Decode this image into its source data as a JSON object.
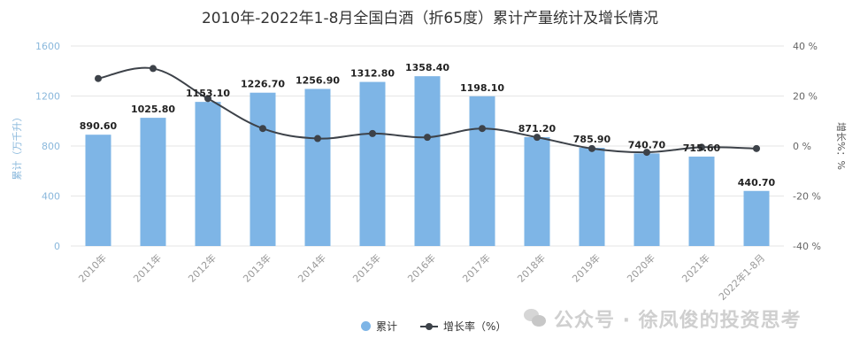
{
  "chart_data": {
    "type": "bar",
    "title": "2010年-2022年1-8月全国白酒（折65度）累计产量统计及增长情况",
    "categories": [
      "2010年",
      "2011年",
      "2012年",
      "2013年",
      "2014年",
      "2015年",
      "2016年",
      "2017年",
      "2018年",
      "2019年",
      "2020年",
      "2021年",
      "2022年1-8月"
    ],
    "ylabel": "累计（万千升）",
    "y2label": "增长%：%",
    "ylim": [
      0,
      1600
    ],
    "y2lim": [
      -40,
      40
    ],
    "yticks": [
      "0",
      "400",
      "800",
      "1200",
      "1600"
    ],
    "y2ticks": [
      "-40 %",
      "-20 %",
      "0 %",
      "20 %",
      "40 %"
    ],
    "grid": true,
    "legend_position": "bottom",
    "series": [
      {
        "name": "累计",
        "type": "bar",
        "axis": "left",
        "color": "#7eb5e6",
        "values": [
          890.6,
          1025.8,
          1153.1,
          1226.7,
          1256.9,
          1312.8,
          1358.4,
          1198.1,
          871.2,
          785.9,
          740.7,
          715.6,
          440.7
        ],
        "labels": [
          "890.60",
          "1025.80",
          "1153.10",
          "1226.70",
          "1256.90",
          "1312.80",
          "1358.40",
          "1198.10",
          "871.20",
          "785.90",
          "740.70",
          "715.60",
          "440.70"
        ]
      },
      {
        "name": "增长率（%）",
        "type": "line",
        "axis": "right",
        "color": "#3d4249",
        "values": [
          27,
          31,
          19,
          7,
          3,
          5,
          3.5,
          7,
          3.5,
          -1,
          -2.5,
          -0.5,
          -1
        ]
      }
    ]
  },
  "watermark": {
    "text": "公众号 · 徐凤俊的投资思考",
    "icon": "wechat-icon"
  }
}
